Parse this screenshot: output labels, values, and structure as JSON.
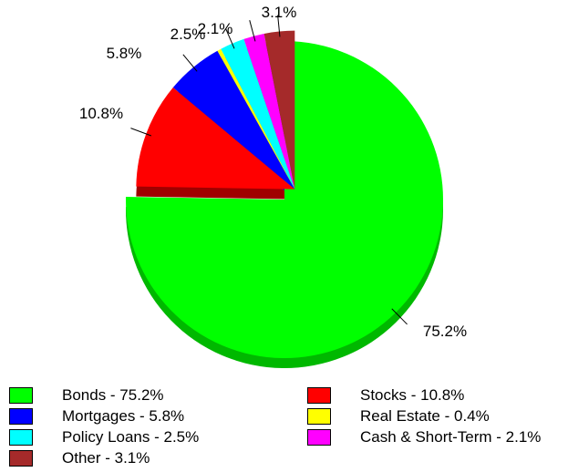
{
  "chart_data": {
    "type": "pie",
    "slices": [
      {
        "label": "Bonds",
        "value": 75.2,
        "display": "75.2%",
        "legend": "Bonds - 75.2%",
        "color": "#00ff00",
        "side_color": "#00b800"
      },
      {
        "label": "Stocks",
        "value": 10.8,
        "display": "10.8%",
        "legend": "Stocks - 10.8%",
        "color": "#ff0000",
        "side_color": "#a00000"
      },
      {
        "label": "Mortgages",
        "value": 5.8,
        "display": "5.8%",
        "legend": "Mortgages - 5.8%",
        "color": "#0000ff",
        "side_color": "#0000a0"
      },
      {
        "label": "Real Estate",
        "value": 0.4,
        "display": "",
        "legend": "Real Estate - 0.4%",
        "color": "#ffff00",
        "side_color": "#a0a000"
      },
      {
        "label": "Policy Loans",
        "value": 2.5,
        "display": "2.5%",
        "legend": "Policy Loans - 2.5%",
        "color": "#00ffff",
        "side_color": "#00a0a0"
      },
      {
        "label": "Cash & Short-Term",
        "value": 2.1,
        "display": "2.1%",
        "legend": "Cash & Short-Term - 2.1%",
        "color": "#ff00ff",
        "side_color": "#a000a0"
      },
      {
        "label": "Other",
        "value": 3.1,
        "display": "3.1%",
        "legend": "Other - 3.1%",
        "color": "#a52a2a",
        "side_color": "#6b1a1a"
      }
    ],
    "exploded": "all slices except the largest",
    "legend_placement": "bottom"
  },
  "legend": {
    "items": [
      {
        "label": "Bonds - 75.2%",
        "color": "#00ff00"
      },
      {
        "label": "Stocks - 10.8%",
        "color": "#ff0000"
      },
      {
        "label": "Mortgages - 5.8%",
        "color": "#0000ff"
      },
      {
        "label": "Real Estate - 0.4%",
        "color": "#ffff00"
      },
      {
        "label": "Policy Loans - 2.5%",
        "color": "#00ffff"
      },
      {
        "label": "Cash & Short-Term - 2.1%",
        "color": "#ff00ff"
      },
      {
        "label": "Other - 3.1%",
        "color": "#a52a2a"
      }
    ]
  }
}
